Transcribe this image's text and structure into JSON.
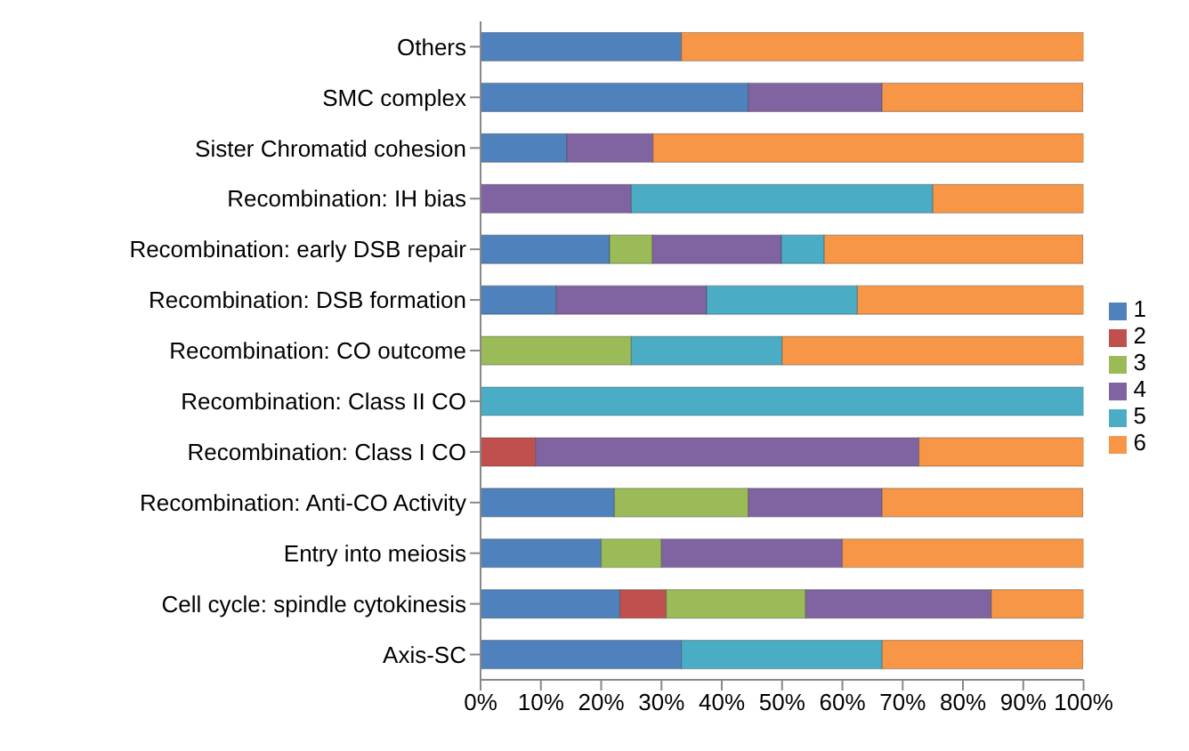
{
  "chart_data": {
    "type": "bar",
    "orientation": "horizontal",
    "stacked": true,
    "categories": [
      "Others",
      "SMC complex",
      "Sister Chromatid cohesion",
      "Recombination: IH bias",
      "Recombination: early DSB repair",
      "Recombination: DSB formation",
      "Recombination: CO  outcome",
      "Recombination: Class II CO",
      "Recombination: Class I CO",
      "Recombination: Anti-CO Activity",
      "Entry into meiosis",
      "Cell cycle: spindle cytokinesis",
      "Axis-SC"
    ],
    "series": [
      {
        "name": "1",
        "color": "#4f81bd",
        "values": [
          33.3,
          44.4,
          14.3,
          null,
          21.4,
          12.5,
          null,
          null,
          null,
          22.2,
          20,
          23.1,
          33.3
        ]
      },
      {
        "name": "2",
        "color": "#c0504d",
        "values": [
          null,
          null,
          null,
          null,
          null,
          null,
          null,
          null,
          9.1,
          null,
          null,
          7.7,
          null
        ]
      },
      {
        "name": "3",
        "color": "#9bbb59",
        "values": [
          null,
          null,
          null,
          null,
          7.1,
          null,
          25,
          null,
          null,
          22.2,
          10,
          23.1,
          null
        ]
      },
      {
        "name": "4",
        "color": "#8064a2",
        "values": [
          null,
          22.2,
          14.3,
          25,
          21.4,
          25,
          null,
          null,
          63.6,
          22.2,
          30,
          30.8,
          null
        ]
      },
      {
        "name": "5",
        "color": "#4bacc6",
        "values": [
          null,
          null,
          null,
          50,
          7.1,
          25,
          25,
          100,
          null,
          null,
          null,
          null,
          33.3
        ]
      },
      {
        "name": "6",
        "color": "#f79646",
        "values": [
          66.7,
          33.3,
          71.4,
          25,
          42.9,
          37.5,
          50,
          null,
          27.3,
          33.3,
          40,
          15.4,
          33.3
        ]
      }
    ],
    "xlim": [
      0,
      100
    ],
    "xticks": [
      {
        "value": 0,
        "label": "0%"
      },
      {
        "value": 10,
        "label": "10%"
      },
      {
        "value": 20,
        "label": "20%"
      },
      {
        "value": 30,
        "label": "30%"
      },
      {
        "value": 40,
        "label": "40%"
      },
      {
        "value": 50,
        "label": "50%"
      },
      {
        "value": 60,
        "label": "60%"
      },
      {
        "value": 70,
        "label": "70%"
      },
      {
        "value": 80,
        "label": "80%"
      },
      {
        "value": 90,
        "label": "90%"
      },
      {
        "value": 100,
        "label": "100%"
      }
    ],
    "grid": false,
    "legend": "right"
  }
}
